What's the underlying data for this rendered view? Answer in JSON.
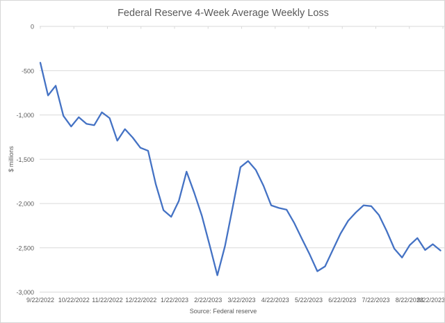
{
  "chart_data": {
    "type": "line",
    "title": "Federal Reserve 4-Week Average Weekly Loss",
    "ylabel": "$ millions",
    "source": "Source: Federal reserve",
    "legend_position": "none",
    "grid": true,
    "ylim": [
      -3000,
      0
    ],
    "y_tick_labels": [
      "0",
      "-500",
      "-1,000",
      "-1,500",
      "-2,000",
      "-2,500",
      "-3,000"
    ],
    "x_tick_labels": [
      "9/22/2022",
      "10/22/2022",
      "11/22/2022",
      "12/22/2022",
      "1/22/2023",
      "2/22/2023",
      "3/22/2023",
      "4/22/2023",
      "5/22/2023",
      "6/22/2023",
      "7/22/2023",
      "8/22/2023",
      "9/22/2023"
    ],
    "line_color": "#4472C4",
    "gridline_color": "#d9d9d9",
    "text_color": "#595959",
    "values": [
      -410,
      -780,
      -670,
      -1010,
      -1130,
      -1025,
      -1100,
      -1115,
      -970,
      -1035,
      -1290,
      -1160,
      -1255,
      -1370,
      -1405,
      -1780,
      -2075,
      -2150,
      -1970,
      -1640,
      -1880,
      -2140,
      -2470,
      -2810,
      -2480,
      -2040,
      -1590,
      -1520,
      -1620,
      -1800,
      -2020,
      -2050,
      -2070,
      -2220,
      -2400,
      -2575,
      -2765,
      -2710,
      -2525,
      -2340,
      -2195,
      -2100,
      -2020,
      -2030,
      -2130,
      -2310,
      -2510,
      -2610,
      -2470,
      -2390,
      -2525,
      -2460,
      -2530
    ]
  }
}
